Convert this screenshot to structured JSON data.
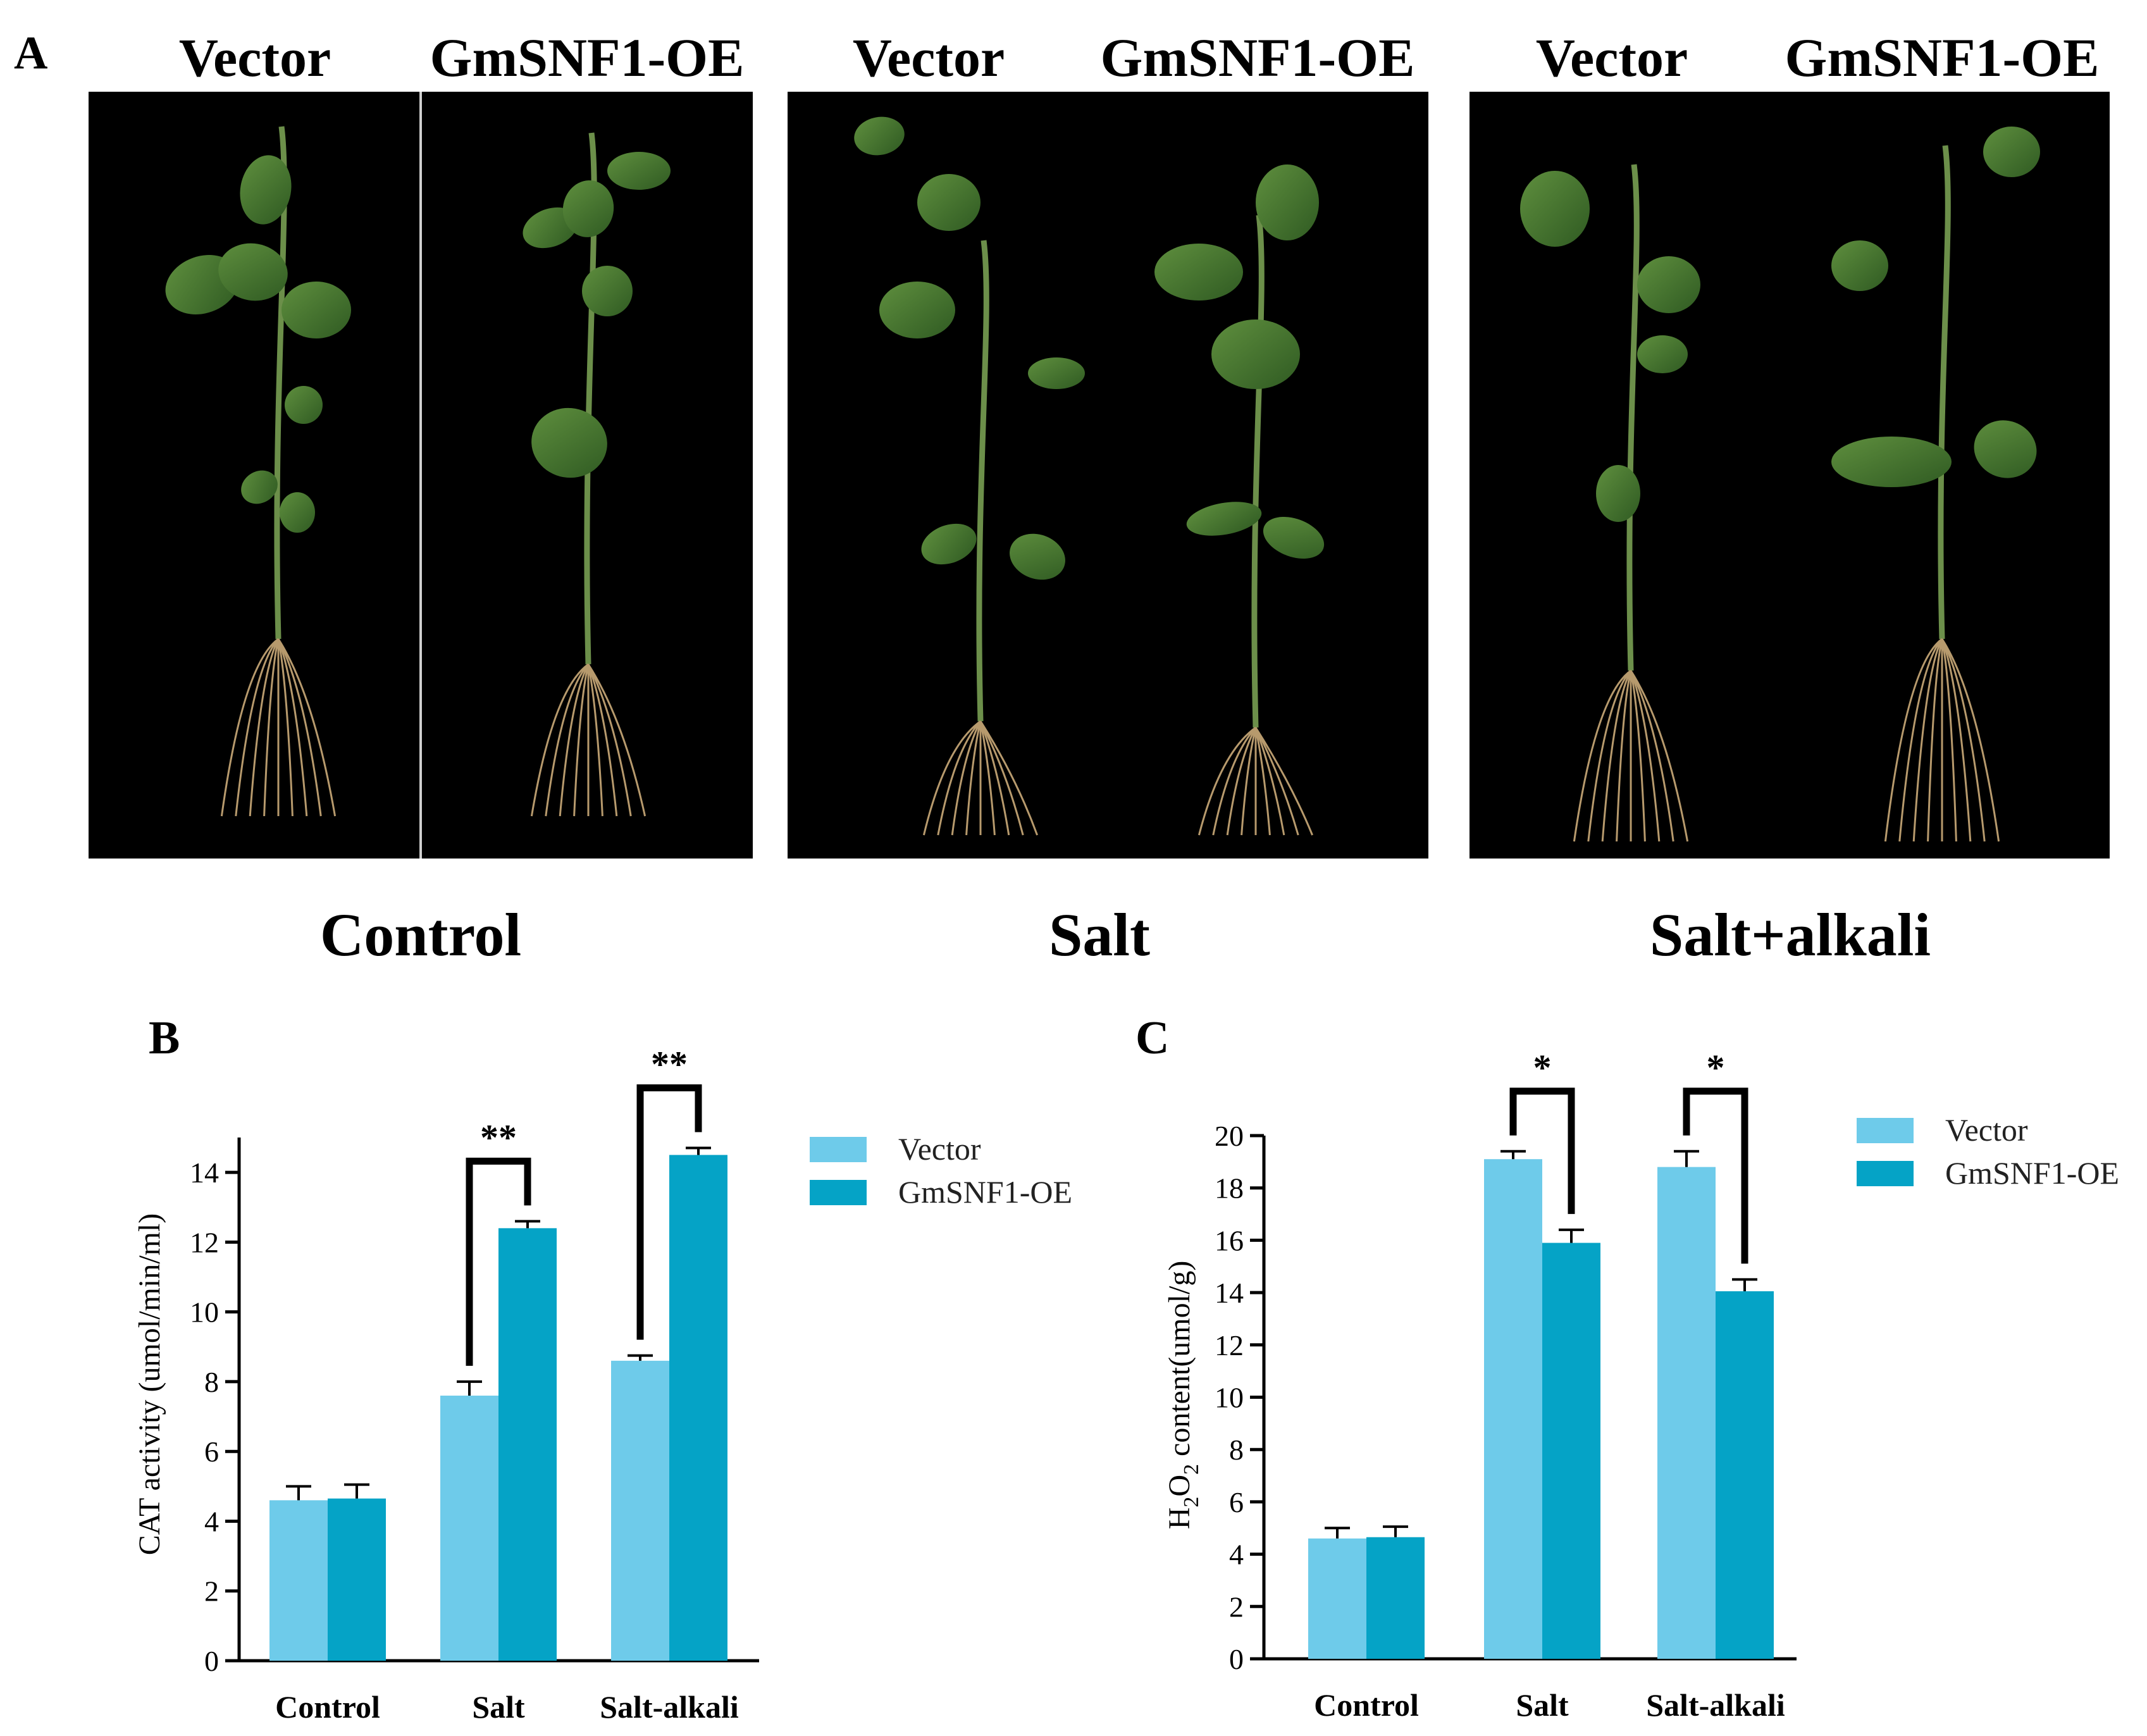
{
  "panel_a": {
    "letter": "A",
    "groups": [
      {
        "left_label": "Vector",
        "right_label": "GmSNF1-OE",
        "condition": "Control"
      },
      {
        "left_label": "Vector",
        "right_label": "GmSNF1-OE",
        "condition": "Salt"
      },
      {
        "left_label": "Vector",
        "right_label": "GmSNF1-OE",
        "condition": "Salt+alkali"
      }
    ]
  },
  "chart_data": [
    {
      "panel": "B",
      "type": "bar",
      "categories": [
        "Control",
        "Salt",
        "Salt-alkali"
      ],
      "series": [
        {
          "name": "Vector",
          "values": [
            4.6,
            7.6,
            8.6
          ],
          "errors": [
            0.4,
            0.4,
            0.15
          ]
        },
        {
          "name": "GmSNF1-OE",
          "values": [
            4.65,
            12.4,
            14.5
          ],
          "errors": [
            0.4,
            0.2,
            0.2
          ]
        }
      ],
      "ylabel": "CAT activity (umol/min/ml)",
      "xlabel": "",
      "ylim": [
        0,
        15
      ],
      "yticks": [
        "0",
        "2",
        "4",
        "6",
        "8",
        "10",
        "12",
        "14"
      ],
      "significance": [
        "",
        "**",
        "**"
      ],
      "legend": "right",
      "colors": [
        "#6ecbea",
        "#05a3c6"
      ]
    },
    {
      "panel": "C",
      "type": "bar",
      "categories": [
        "Control",
        "Salt",
        "Salt-alkali"
      ],
      "series": [
        {
          "name": "Vector",
          "values": [
            4.6,
            19.1,
            18.8
          ],
          "errors": [
            0.4,
            0.3,
            0.6
          ]
        },
        {
          "name": "GmSNF1-OE",
          "values": [
            4.65,
            15.9,
            14.05
          ],
          "errors": [
            0.4,
            0.5,
            0.45
          ]
        }
      ],
      "ylabel_main": "H",
      "ylabel_sub1": "2",
      "ylabel_mid": "O",
      "ylabel_sub2": "2",
      "ylabel_rest": " content(umol/g)",
      "xlabel": "",
      "ylim": [
        0,
        20
      ],
      "yticks": [
        "0",
        "2",
        "4",
        "6",
        "8",
        "10",
        "12",
        "14",
        "16",
        "18",
        "20"
      ],
      "significance": [
        "",
        "*",
        "*"
      ],
      "legend": "right",
      "colors": [
        "#6ecbea",
        "#05a3c6"
      ]
    }
  ]
}
